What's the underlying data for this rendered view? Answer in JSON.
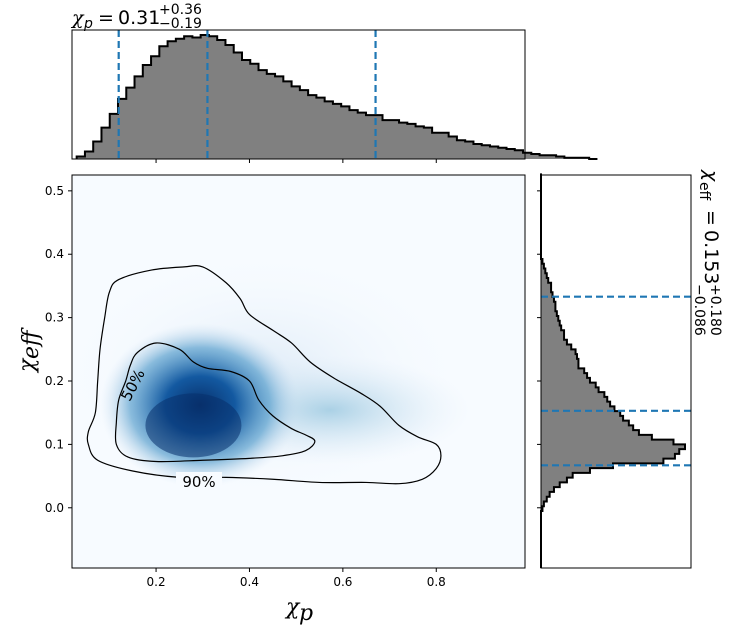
{
  "chart_data": {
    "type": "corner-plot",
    "panels": {
      "joint": {
        "type": "heatmap-contour",
        "xlabel": "χ",
        "xlabel_sub": "p",
        "ylabel": "χ",
        "ylabel_sub": "eff",
        "xlim": [
          0.02,
          0.99
        ],
        "ylim": [
          -0.095,
          0.525
        ],
        "xticks": [
          0.2,
          0.4,
          0.6,
          0.8
        ],
        "yticks": [
          0.0,
          0.1,
          0.2,
          0.3,
          0.4,
          0.5
        ],
        "xtick_labels": [
          "0.2",
          "0.4",
          "0.6",
          "0.8"
        ],
        "ytick_labels": [
          "0.0",
          "0.1",
          "0.2",
          "0.3",
          "0.4",
          "0.5"
        ],
        "colormap": "Blues",
        "density_peak": {
          "x": 0.28,
          "y": 0.13
        },
        "contours": [
          {
            "label": "90%",
            "points": [
              [
                0.26,
                0.38
              ],
              [
                0.19,
                0.375
              ],
              [
                0.12,
                0.36
              ],
              [
                0.1,
                0.34
              ],
              [
                0.09,
                0.3
              ],
              [
                0.08,
                0.25
              ],
              [
                0.075,
                0.2
              ],
              [
                0.07,
                0.15
              ],
              [
                0.055,
                0.12
              ],
              [
                0.055,
                0.1
              ],
              [
                0.075,
                0.075
              ],
              [
                0.15,
                0.058
              ],
              [
                0.25,
                0.048
              ],
              [
                0.35,
                0.048
              ],
              [
                0.45,
                0.045
              ],
              [
                0.55,
                0.04
              ],
              [
                0.65,
                0.04
              ],
              [
                0.72,
                0.038
              ],
              [
                0.77,
                0.045
              ],
              [
                0.8,
                0.062
              ],
              [
                0.81,
                0.082
              ],
              [
                0.8,
                0.1
              ],
              [
                0.76,
                0.112
              ],
              [
                0.72,
                0.13
              ],
              [
                0.68,
                0.16
              ],
              [
                0.64,
                0.18
              ],
              [
                0.58,
                0.205
              ],
              [
                0.53,
                0.23
              ],
              [
                0.49,
                0.26
              ],
              [
                0.45,
                0.28
              ],
              [
                0.4,
                0.305
              ],
              [
                0.38,
                0.33
              ],
              [
                0.35,
                0.355
              ],
              [
                0.3,
                0.38
              ],
              [
                0.26,
                0.38
              ]
            ]
          },
          {
            "label": "50%",
            "points": [
              [
                0.2,
                0.26
              ],
              [
                0.16,
                0.245
              ],
              [
                0.145,
                0.225
              ],
              [
                0.135,
                0.2
              ],
              [
                0.12,
                0.17
              ],
              [
                0.115,
                0.135
              ],
              [
                0.115,
                0.1
              ],
              [
                0.14,
                0.08
              ],
              [
                0.2,
                0.073
              ],
              [
                0.3,
                0.075
              ],
              [
                0.4,
                0.078
              ],
              [
                0.47,
                0.082
              ],
              [
                0.52,
                0.09
              ],
              [
                0.54,
                0.105
              ],
              [
                0.52,
                0.115
              ],
              [
                0.49,
                0.125
              ],
              [
                0.45,
                0.145
              ],
              [
                0.42,
                0.17
              ],
              [
                0.4,
                0.2
              ],
              [
                0.36,
                0.215
              ],
              [
                0.31,
                0.22
              ],
              [
                0.28,
                0.23
              ],
              [
                0.25,
                0.25
              ],
              [
                0.2,
                0.26
              ]
            ]
          }
        ],
        "contour_label_90": "90%",
        "contour_label_50": "50%"
      },
      "top": {
        "type": "step-histogram",
        "param": "χ",
        "param_sub": "p",
        "median": 0.31,
        "plus": 0.36,
        "minus": 0.19,
        "median_text": "0.31",
        "plus_text": "+0.36",
        "minus_text": "−0.19",
        "quantile_lines": [
          0.12,
          0.31,
          0.67
        ],
        "bin_start": 0.03,
        "bin_width": 0.0177,
        "counts": [
          2,
          6,
          14,
          25,
          36,
          48,
          57,
          66,
          75,
          82,
          90,
          94,
          96,
          98,
          97,
          99,
          98,
          95,
          91,
          85,
          79,
          76,
          71,
          68,
          66,
          62,
          58,
          55,
          51,
          49,
          46,
          44,
          42,
          39,
          37,
          35,
          35,
          31,
          31,
          29,
          28,
          26,
          25,
          21,
          21,
          18,
          15,
          14,
          12,
          11,
          10,
          9,
          8,
          7,
          5,
          4,
          3,
          3,
          2,
          1,
          1,
          1,
          0
        ]
      },
      "right": {
        "type": "step-histogram",
        "param": "χ",
        "param_sub": "eff",
        "median": 0.153,
        "plus": 0.18,
        "minus": 0.086,
        "median_text": "0.153",
        "plus_text": "+0.180",
        "minus_text": "−0.086",
        "quantile_lines": [
          0.067,
          0.153,
          0.333
        ],
        "bin_start": -0.095,
        "bin_width": 0.0075,
        "counts": [
          0,
          0,
          0,
          0,
          0,
          0,
          0,
          0,
          0,
          0,
          0,
          0,
          1,
          2,
          4,
          6,
          9,
          13,
          18,
          22,
          34,
          50,
          85,
          93,
          96,
          100,
          92,
          77,
          68,
          64,
          61,
          57,
          55,
          51,
          48,
          46,
          44,
          40,
          38,
          34,
          32,
          30,
          26,
          26,
          25,
          24,
          21,
          18,
          16,
          16,
          14,
          13,
          12,
          11,
          10,
          10,
          9,
          8,
          7,
          7,
          5,
          4,
          3,
          2,
          1,
          0,
          0,
          0,
          0,
          0,
          0,
          0,
          0,
          0,
          0,
          0,
          0,
          0,
          0,
          0,
          0,
          0,
          0
        ]
      }
    }
  }
}
